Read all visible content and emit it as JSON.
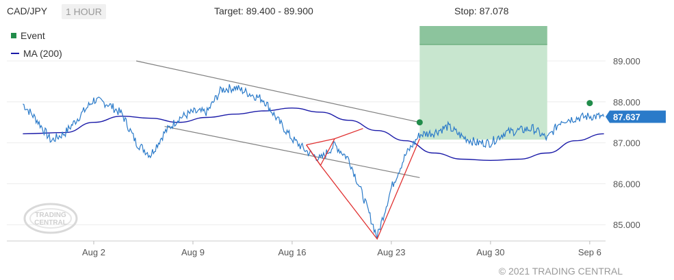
{
  "header": {
    "pair": "CAD/JPY",
    "timeframe": "1 HOUR",
    "target_label": "Target: 89.400 - 89.900",
    "stop_label": "Stop: 87.078"
  },
  "legend": {
    "event_label": "Event",
    "ma_label": "MA (200)"
  },
  "watermark": {
    "line1": "TRADING",
    "line2": "CENTRAL"
  },
  "copyright": "© 2021 TRADING CENTRAL",
  "colors": {
    "price": "#2a7ac9",
    "ma": "#1a1aa8",
    "event": "#218c4a",
    "target_zone": "#c8e6cf",
    "target_band": "#8cc49d",
    "pattern": "#e03030",
    "channel": "#808080",
    "last_price_tag": "#2a7ac9"
  },
  "chart_data": {
    "type": "line",
    "y_ticks": [
      "89.000",
      "88.000",
      "87.000",
      "86.000",
      "85.000"
    ],
    "y_tick_values": [
      89.0,
      88.0,
      87.0,
      86.0,
      85.0
    ],
    "x_ticks": [
      "Aug 2",
      "Aug 9",
      "Aug 16",
      "Aug 23",
      "Aug 30",
      "Sep 6"
    ],
    "ylim": [
      84.6,
      89.9
    ],
    "last_price": "87.637",
    "target": [
      89.4,
      89.9
    ],
    "stop": 87.078,
    "event_points": [
      {
        "label": "Event",
        "date": "Aug 25",
        "value": 87.5
      },
      {
        "label": "Event",
        "date": "Sep 6",
        "value": 87.97
      }
    ],
    "series": [
      {
        "name": "CAD/JPY",
        "points": [
          [
            "Jul 28",
            87.95
          ],
          [
            "Jul 29",
            87.55
          ],
          [
            "Jul 30",
            87.05
          ],
          [
            "Jul 31",
            87.25
          ],
          [
            "Aug 1",
            87.65
          ],
          [
            "Aug 2",
            88.05
          ],
          [
            "Aug 3",
            87.95
          ],
          [
            "Aug 4",
            87.7
          ],
          [
            "Aug 5",
            87.0
          ],
          [
            "Aug 6",
            86.7
          ],
          [
            "Aug 7",
            87.25
          ],
          [
            "Aug 8",
            87.6
          ],
          [
            "Aug 9",
            87.75
          ],
          [
            "Aug 10",
            87.75
          ],
          [
            "Aug 11",
            88.3
          ],
          [
            "Aug 12",
            88.35
          ],
          [
            "Aug 13",
            88.2
          ],
          [
            "Aug 14",
            88.05
          ],
          [
            "Aug 15",
            87.55
          ],
          [
            "Aug 16",
            87.1
          ],
          [
            "Aug 17",
            86.8
          ],
          [
            "Aug 18",
            86.6
          ],
          [
            "Aug 19",
            86.95
          ],
          [
            "Aug 20",
            86.6
          ],
          [
            "Aug 21",
            85.7
          ],
          [
            "Aug 22",
            84.7
          ],
          [
            "Aug 23",
            85.9
          ],
          [
            "Aug 24",
            86.7
          ],
          [
            "Aug 25",
            87.2
          ],
          [
            "Aug 26",
            87.25
          ],
          [
            "Aug 27",
            87.4
          ],
          [
            "Aug 28",
            87.15
          ],
          [
            "Aug 29",
            87.0
          ],
          [
            "Aug 30",
            87.0
          ],
          [
            "Aug 31",
            87.25
          ],
          [
            "Sep 1",
            87.3
          ],
          [
            "Sep 2",
            87.35
          ],
          [
            "Sep 3",
            87.1
          ],
          [
            "Sep 4",
            87.55
          ],
          [
            "Sep 5",
            87.6
          ],
          [
            "Sep 6",
            87.65
          ],
          [
            "Sep 7",
            87.637
          ]
        ]
      },
      {
        "name": "MA (200)",
        "points": [
          [
            "Jul 28",
            87.22
          ],
          [
            "Jul 31",
            87.25
          ],
          [
            "Aug 2",
            87.5
          ],
          [
            "Aug 4",
            87.65
          ],
          [
            "Aug 6",
            87.6
          ],
          [
            "Aug 8",
            87.5
          ],
          [
            "Aug 10",
            87.62
          ],
          [
            "Aug 12",
            87.7
          ],
          [
            "Aug 14",
            87.78
          ],
          [
            "Aug 16",
            87.85
          ],
          [
            "Aug 18",
            87.75
          ],
          [
            "Aug 20",
            87.55
          ],
          [
            "Aug 22",
            87.3
          ],
          [
            "Aug 24",
            87.05
          ],
          [
            "Aug 26",
            86.75
          ],
          [
            "Aug 28",
            86.6
          ],
          [
            "Aug 30",
            86.57
          ],
          [
            "Sep 1",
            86.6
          ],
          [
            "Sep 3",
            86.75
          ],
          [
            "Sep 5",
            87.05
          ],
          [
            "Sep 7",
            87.22
          ]
        ]
      }
    ],
    "channel_lines": [
      {
        "from": [
          "Aug 5",
          89.0
        ],
        "to": [
          "Aug 25",
          87.5
        ]
      },
      {
        "from": [
          "Aug 7",
          87.4
        ],
        "to": [
          "Aug 25",
          86.15
        ]
      }
    ],
    "pattern_lines": [
      [
        [
          "Aug 17",
          86.95
        ],
        [
          "Aug 18",
          86.45
        ],
        [
          "Aug 19",
          87.1
        ],
        [
          "Aug 18",
          86.45
        ],
        [
          "Aug 22",
          84.65
        ],
        [
          "Aug 25",
          87.1
        ]
      ],
      [
        [
          "Aug 17",
          86.95
        ],
        [
          "Aug 19",
          87.1
        ],
        [
          "Aug 21",
          87.35
        ]
      ],
      [
        [
          "Aug 17",
          86.95
        ],
        [
          "Aug 18",
          86.45
        ]
      ]
    ]
  }
}
